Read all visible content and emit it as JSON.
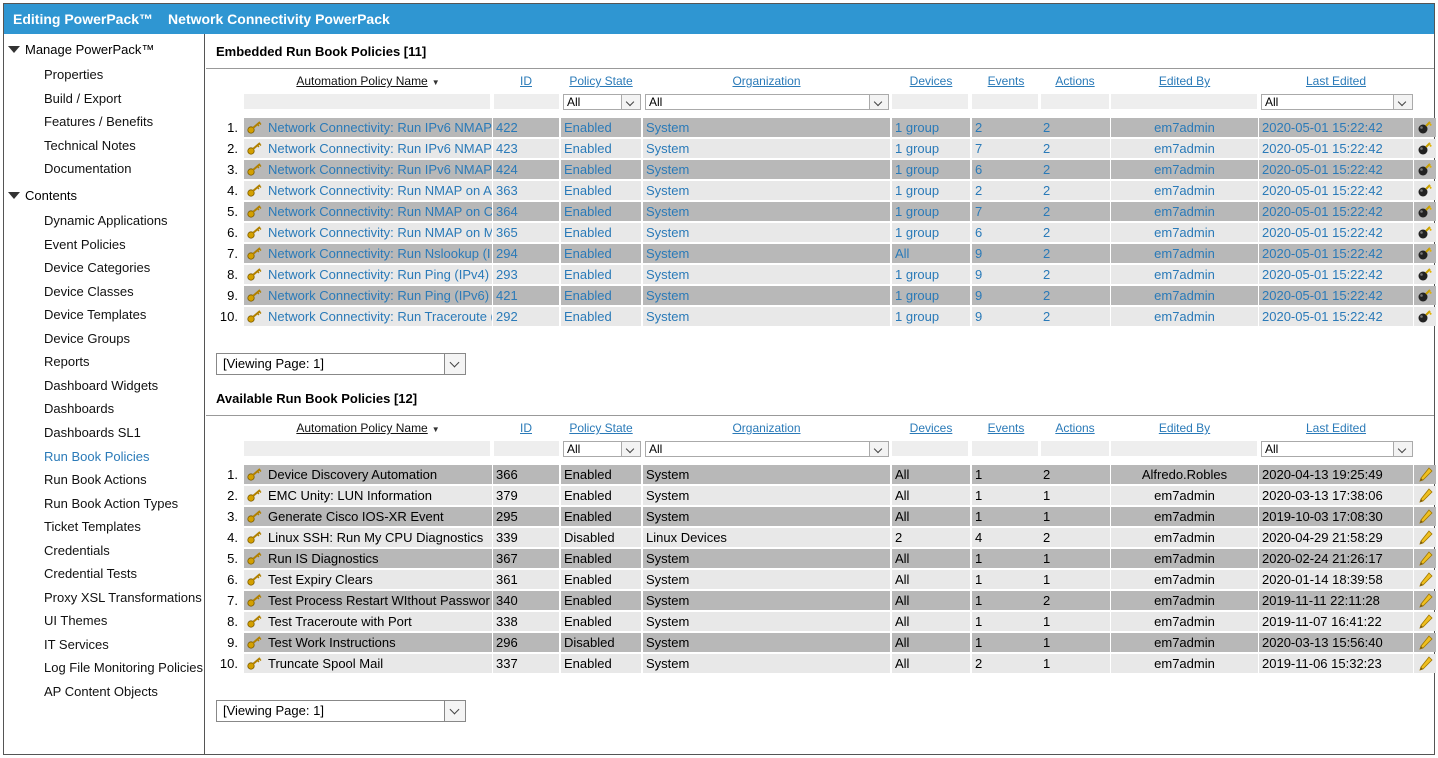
{
  "titlebar": {
    "mode": "Editing PowerPack™",
    "name": "Network Connectivity PowerPack"
  },
  "sidebar": {
    "manage": {
      "label": "Manage PowerPack™",
      "items": [
        "Properties",
        "Build / Export",
        "Features / Benefits",
        "Technical Notes",
        "Documentation"
      ]
    },
    "contents": {
      "label": "Contents",
      "items": [
        "Dynamic Applications",
        "Event Policies",
        "Device Categories",
        "Device Classes",
        "Device Templates",
        "Device Groups",
        "Reports",
        "Dashboard Widgets",
        "Dashboards",
        "Dashboards SL1",
        "Run Book Policies",
        "Run Book Actions",
        "Run Book Action Types",
        "Ticket Templates",
        "Credentials",
        "Credential Tests",
        "Proxy XSL Transformations",
        "UI Themes",
        "IT Services",
        "Log File Monitoring Policies",
        "AP Content Objects"
      ],
      "active": "Run Book Policies"
    }
  },
  "columns": {
    "name": "Automation Policy Name",
    "id": "ID",
    "state": "Policy State",
    "org": "Organization",
    "devices": "Devices",
    "events": "Events",
    "actions": "Actions",
    "edited_by": "Edited By",
    "last_edited": "Last Edited"
  },
  "filters": {
    "state": "All",
    "org": "All",
    "last_edited": "All"
  },
  "embedded": {
    "title": "Embedded Run Book Policies [11]",
    "pager": "[Viewing Page: 1]",
    "rows": [
      {
        "n": "1.",
        "name": "Network Connectivity: Run IPv6 NMAP",
        "id": "422",
        "state": "Enabled",
        "org": "System",
        "devices": "1 group",
        "events": "2",
        "actions": "2",
        "edited_by": "em7admin",
        "last_edited": "2020-05-01 15:22:42"
      },
      {
        "n": "2.",
        "name": "Network Connectivity: Run IPv6 NMAP",
        "id": "423",
        "state": "Enabled",
        "org": "System",
        "devices": "1 group",
        "events": "7",
        "actions": "2",
        "edited_by": "em7admin",
        "last_edited": "2020-05-01 15:22:42"
      },
      {
        "n": "3.",
        "name": "Network Connectivity: Run IPv6 NMAP",
        "id": "424",
        "state": "Enabled",
        "org": "System",
        "devices": "1 group",
        "events": "6",
        "actions": "2",
        "edited_by": "em7admin",
        "last_edited": "2020-05-01 15:22:42"
      },
      {
        "n": "4.",
        "name": "Network Connectivity: Run NMAP on A",
        "id": "363",
        "state": "Enabled",
        "org": "System",
        "devices": "1 group",
        "events": "2",
        "actions": "2",
        "edited_by": "em7admin",
        "last_edited": "2020-05-01 15:22:42"
      },
      {
        "n": "5.",
        "name": "Network Connectivity: Run NMAP on C",
        "id": "364",
        "state": "Enabled",
        "org": "System",
        "devices": "1 group",
        "events": "7",
        "actions": "2",
        "edited_by": "em7admin",
        "last_edited": "2020-05-01 15:22:42"
      },
      {
        "n": "6.",
        "name": "Network Connectivity: Run NMAP on M",
        "id": "365",
        "state": "Enabled",
        "org": "System",
        "devices": "1 group",
        "events": "6",
        "actions": "2",
        "edited_by": "em7admin",
        "last_edited": "2020-05-01 15:22:42"
      },
      {
        "n": "7.",
        "name": "Network Connectivity: Run Nslookup (I",
        "id": "294",
        "state": "Enabled",
        "org": "System",
        "devices": "All",
        "events": "9",
        "actions": "2",
        "edited_by": "em7admin",
        "last_edited": "2020-05-01 15:22:42"
      },
      {
        "n": "8.",
        "name": "Network Connectivity: Run Ping (IPv4)",
        "id": "293",
        "state": "Enabled",
        "org": "System",
        "devices": "1 group",
        "events": "9",
        "actions": "2",
        "edited_by": "em7admin",
        "last_edited": "2020-05-01 15:22:42"
      },
      {
        "n": "9.",
        "name": "Network Connectivity: Run Ping (IPv6)",
        "id": "421",
        "state": "Enabled",
        "org": "System",
        "devices": "1 group",
        "events": "9",
        "actions": "2",
        "edited_by": "em7admin",
        "last_edited": "2020-05-01 15:22:42"
      },
      {
        "n": "10.",
        "name": "Network Connectivity: Run Traceroute (",
        "id": "292",
        "state": "Enabled",
        "org": "System",
        "devices": "1 group",
        "events": "9",
        "actions": "2",
        "edited_by": "em7admin",
        "last_edited": "2020-05-01 15:22:42"
      }
    ]
  },
  "available": {
    "title": "Available Run Book Policies [12]",
    "pager": "[Viewing Page: 1]",
    "rows": [
      {
        "n": "1.",
        "name": "Device Discovery Automation",
        "id": "366",
        "state": "Enabled",
        "org": "System",
        "devices": "All",
        "events": "1",
        "actions": "2",
        "edited_by": "Alfredo.Robles",
        "last_edited": "2020-04-13 19:25:49"
      },
      {
        "n": "2.",
        "name": "EMC Unity: LUN Information",
        "id": "379",
        "state": "Enabled",
        "org": "System",
        "devices": "All",
        "events": "1",
        "actions": "1",
        "edited_by": "em7admin",
        "last_edited": "2020-03-13 17:38:06"
      },
      {
        "n": "3.",
        "name": "Generate Cisco IOS-XR Event",
        "id": "295",
        "state": "Enabled",
        "org": "System",
        "devices": "All",
        "events": "1",
        "actions": "1",
        "edited_by": "em7admin",
        "last_edited": "2019-10-03 17:08:30"
      },
      {
        "n": "4.",
        "name": "Linux SSH: Run My CPU Diagnostics",
        "id": "339",
        "state": "Disabled",
        "org": "Linux Devices",
        "devices": "2",
        "events": "4",
        "actions": "2",
        "edited_by": "em7admin",
        "last_edited": "2020-04-29 21:58:29"
      },
      {
        "n": "5.",
        "name": "Run IS Diagnostics",
        "id": "367",
        "state": "Enabled",
        "org": "System",
        "devices": "All",
        "events": "1",
        "actions": "1",
        "edited_by": "em7admin",
        "last_edited": "2020-02-24 21:26:17"
      },
      {
        "n": "6.",
        "name": "Test Expiry Clears",
        "id": "361",
        "state": "Enabled",
        "org": "System",
        "devices": "All",
        "events": "1",
        "actions": "1",
        "edited_by": "em7admin",
        "last_edited": "2020-01-14 18:39:58"
      },
      {
        "n": "7.",
        "name": "Test Process Restart WIthout Passwor",
        "id": "340",
        "state": "Enabled",
        "org": "System",
        "devices": "All",
        "events": "1",
        "actions": "2",
        "edited_by": "em7admin",
        "last_edited": "2019-11-11 22:11:28"
      },
      {
        "n": "8.",
        "name": "Test Traceroute with Port",
        "id": "338",
        "state": "Enabled",
        "org": "System",
        "devices": "All",
        "events": "1",
        "actions": "1",
        "edited_by": "em7admin",
        "last_edited": "2019-11-07 16:41:22"
      },
      {
        "n": "9.",
        "name": "Test Work Instructions",
        "id": "296",
        "state": "Disabled",
        "org": "System",
        "devices": "All",
        "events": "1",
        "actions": "1",
        "edited_by": "em7admin",
        "last_edited": "2020-03-13 15:56:40"
      },
      {
        "n": "10.",
        "name": "Truncate Spool Mail",
        "id": "337",
        "state": "Enabled",
        "org": "System",
        "devices": "All",
        "events": "2",
        "actions": "1",
        "edited_by": "em7admin",
        "last_edited": "2019-11-06 15:32:23"
      }
    ]
  }
}
